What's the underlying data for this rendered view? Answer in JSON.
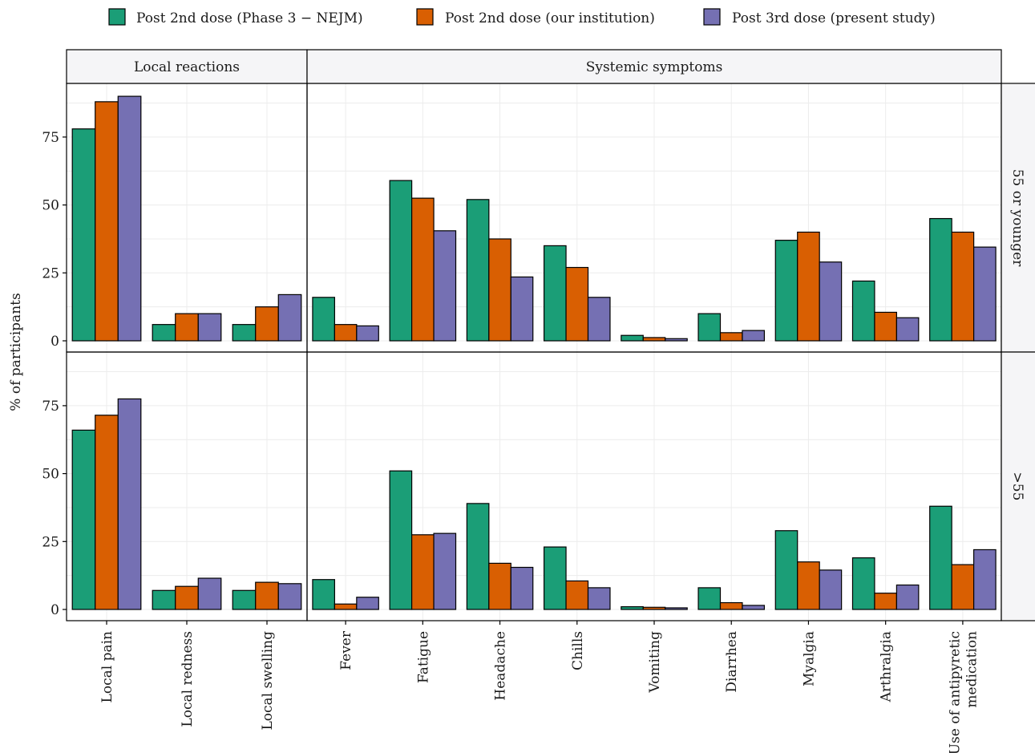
{
  "chart_data": {
    "type": "bar",
    "ylabel": "% of participants",
    "ylim": [
      0,
      94
    ],
    "yticks": [
      0,
      25,
      50,
      75
    ],
    "grid": true,
    "legend_position": "top",
    "series": [
      {
        "name": "Post 2nd dose (Phase 3 − NEJM)",
        "color": "#1b9e77"
      },
      {
        "name": "Post 2nd dose (our institution)",
        "color": "#d95f02"
      },
      {
        "name": "Post 3rd dose (present study)",
        "color": "#7570b3"
      }
    ],
    "column_facets": [
      {
        "label": "Local reactions",
        "categories": [
          {
            "label": "Local pain",
            "lines": [
              "Local pain"
            ]
          },
          {
            "label": "Local redness",
            "lines": [
              "Local redness"
            ]
          },
          {
            "label": "Local swelling",
            "lines": [
              "Local swelling"
            ]
          }
        ]
      },
      {
        "label": "Systemic symptoms",
        "categories": [
          {
            "label": "Fever",
            "lines": [
              "Fever"
            ]
          },
          {
            "label": "Fatigue",
            "lines": [
              "Fatigue"
            ]
          },
          {
            "label": "Headache",
            "lines": [
              "Headache"
            ]
          },
          {
            "label": "Chills",
            "lines": [
              "Chills"
            ]
          },
          {
            "label": "Vomiting",
            "lines": [
              "Vomiting"
            ]
          },
          {
            "label": "Diarrhea",
            "lines": [
              "Diarrhea"
            ]
          },
          {
            "label": "Myalgia",
            "lines": [
              "Myalgia"
            ]
          },
          {
            "label": "Arthralgia",
            "lines": [
              "Arthralgia"
            ]
          },
          {
            "label": "Use of antipyretic medication",
            "lines": [
              "Use of antipyretic",
              "medication"
            ]
          }
        ]
      }
    ],
    "row_facets": [
      {
        "label": "55 or younger",
        "values": [
          [
            [
              78,
              88,
              90
            ],
            [
              6,
              10,
              10
            ],
            [
              6,
              12.5,
              17
            ]
          ],
          [
            [
              16,
              6,
              5.5
            ],
            [
              59,
              52.5,
              40.5
            ],
            [
              52,
              37.5,
              23.5
            ],
            [
              35,
              27,
              16
            ],
            [
              2,
              1.2,
              0.8
            ],
            [
              10,
              3,
              3.8
            ],
            [
              37,
              40,
              29
            ],
            [
              22,
              10.5,
              8.5
            ],
            [
              45,
              40,
              34.5
            ]
          ]
        ]
      },
      {
        "label": ">55",
        "values": [
          [
            [
              66,
              71.5,
              77.5
            ],
            [
              7,
              8.5,
              11.5
            ],
            [
              7,
              10,
              9.5
            ]
          ],
          [
            [
              11,
              2,
              4.5
            ],
            [
              51,
              27.5,
              28
            ],
            [
              39,
              17,
              15.5
            ],
            [
              23,
              10.5,
              8
            ],
            [
              1,
              0.8,
              0.6
            ],
            [
              8,
              2.5,
              1.5
            ],
            [
              29,
              17.5,
              14.5
            ],
            [
              19,
              6,
              9
            ],
            [
              38,
              16.5,
              22
            ]
          ]
        ]
      }
    ]
  }
}
